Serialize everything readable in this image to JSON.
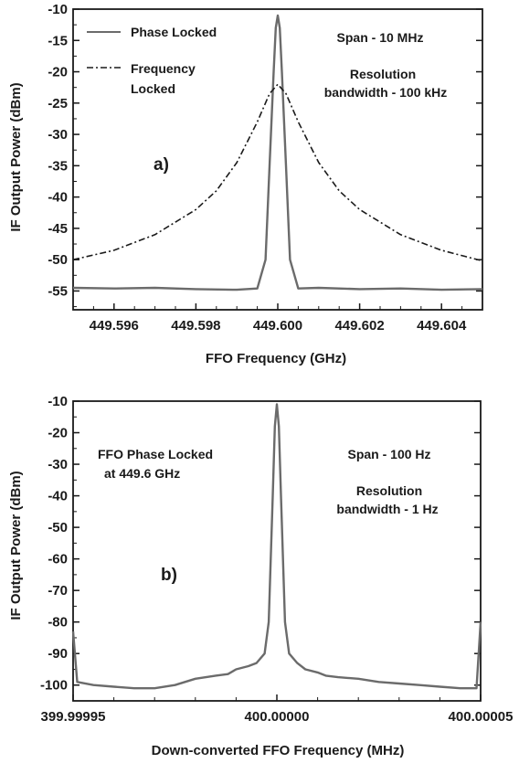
{
  "chart_data": [
    {
      "type": "line",
      "panel_label": "a)",
      "xlabel": "FFO Frequency (GHz)",
      "ylabel": "IF Output Power (dBm)",
      "xlim": [
        449.595,
        449.605
      ],
      "ylim": [
        -58,
        -10
      ],
      "xticks": [
        449.596,
        449.598,
        449.6,
        449.602,
        449.604
      ],
      "xtick_labels": [
        "449.596",
        "449.598",
        "449.600",
        "449.602",
        "449.604"
      ],
      "yticks": [
        -10,
        -15,
        -20,
        -25,
        -30,
        -35,
        -40,
        -45,
        -50,
        -55
      ],
      "ytick_labels": [
        "-10",
        "-15",
        "-20",
        "-25",
        "-30",
        "-35",
        "-40",
        "-45",
        "-50",
        "-55"
      ],
      "annotations": [
        "Span - 10 MHz",
        "Resolution",
        "bandwidth - 100 kHz"
      ],
      "legend": [
        "Phase Locked",
        "Frequency",
        "Locked"
      ],
      "legend_placement": "top-left",
      "series": [
        {
          "name": "Phase Locked",
          "style": "solid",
          "color": "#6b6b6b",
          "x": [
            449.595,
            449.596,
            449.597,
            449.598,
            449.599,
            449.5995,
            449.5997,
            449.5998,
            449.5999,
            449.59995,
            449.6,
            449.60005,
            449.6001,
            449.6002,
            449.6003,
            449.6005,
            449.601,
            449.602,
            449.603,
            449.604,
            449.605
          ],
          "y": [
            -54.5,
            -54.6,
            -54.5,
            -54.7,
            -54.8,
            -54.6,
            -50,
            -35,
            -20,
            -13,
            -11,
            -13,
            -20,
            -35,
            -50,
            -54.6,
            -54.5,
            -54.7,
            -54.6,
            -54.8,
            -54.7
          ]
        },
        {
          "name": "Frequency Locked",
          "style": "dash-dot",
          "color": "#1a1a1a",
          "x": [
            449.595,
            449.596,
            449.597,
            449.598,
            449.5985,
            449.599,
            449.5995,
            449.5998,
            449.6,
            449.6002,
            449.6005,
            449.601,
            449.6015,
            449.602,
            449.603,
            449.604,
            449.605
          ],
          "y": [
            -50.0,
            -48.5,
            -46.0,
            -42.0,
            -39.0,
            -34.5,
            -28.0,
            -23.5,
            -22.0,
            -23.5,
            -28.0,
            -34.5,
            -39.0,
            -42.0,
            -46.0,
            -48.5,
            -50.2
          ]
        }
      ]
    },
    {
      "type": "line",
      "panel_label": "b)",
      "xlabel": "Down-converted FFO Frequency (MHz)",
      "ylabel": "IF Output Power (dBm)",
      "xlim": [
        399.99995,
        400.00005
      ],
      "ylim": [
        -105,
        -10
      ],
      "xticks": [
        399.99995,
        400.0,
        400.00005
      ],
      "xtick_labels": [
        "399.99995",
        "400.00000",
        "400.00005"
      ],
      "yticks": [
        -10,
        -20,
        -30,
        -40,
        -50,
        -60,
        -70,
        -80,
        -90,
        -100
      ],
      "ytick_labels": [
        "-10",
        "-20",
        "-30",
        "-40",
        "-50",
        "-60",
        "-70",
        "-80",
        "-90",
        "-100"
      ],
      "annotations": [
        "FFO Phase Locked",
        "at 449.6 GHz",
        "Span - 100 Hz",
        "Resolution",
        "bandwidth - 1 Hz"
      ],
      "series": [
        {
          "name": "",
          "style": "solid",
          "color": "#6b6b6b",
          "x": [
            399.99995,
            399.999951,
            399.999955,
            399.99996,
            399.999965,
            399.99997,
            399.999975,
            399.99998,
            399.999985,
            399.999988,
            399.99999,
            399.999993,
            399.999995,
            399.999997,
            399.999998,
            399.999999,
            399.9999995,
            400.0,
            400.0000005,
            400.000001,
            400.000002,
            400.000003,
            400.000005,
            400.000007,
            400.00001,
            400.000012,
            400.000015,
            400.00002,
            400.000025,
            400.00003,
            400.000035,
            400.00004,
            400.000045,
            400.000049,
            400.00005
          ],
          "y": [
            -83,
            -99,
            -100,
            -100.5,
            -101,
            -101,
            -100,
            -98,
            -97,
            -96.5,
            -95,
            -94,
            -93,
            -90,
            -80,
            -40,
            -18,
            -11,
            -18,
            -40,
            -80,
            -90,
            -93,
            -95,
            -96,
            -97,
            -97.5,
            -98,
            -99,
            -99.5,
            -100,
            -100.5,
            -101,
            -101,
            -80
          ]
        }
      ]
    }
  ]
}
